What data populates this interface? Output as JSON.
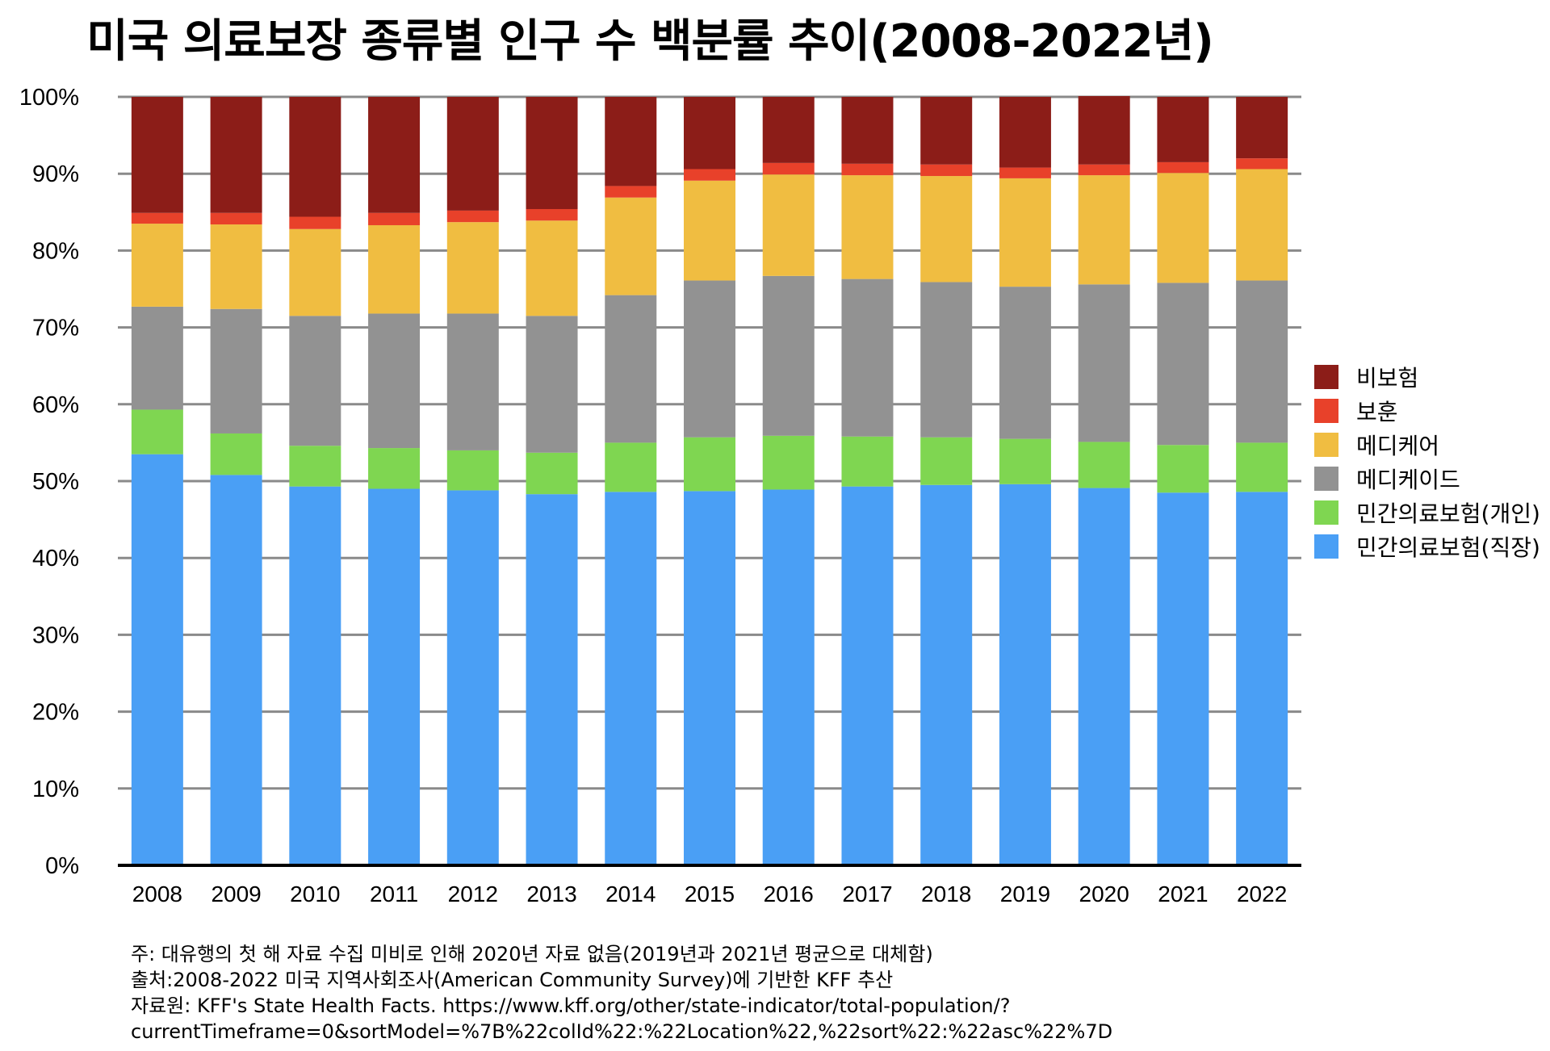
{
  "chart_data": {
    "type": "bar",
    "stacked": true,
    "title": "미국 의료보장 종류별 인구 수 백분률 추이(2008-2022년)",
    "xlabel": "",
    "ylabel": "",
    "ylim": [
      0,
      100
    ],
    "yticks": [
      "0%",
      "10%",
      "20%",
      "30%",
      "40%",
      "50%",
      "60%",
      "70%",
      "80%",
      "90%",
      "100%"
    ],
    "grid": true,
    "legend_position": "right",
    "categories": [
      "2008",
      "2009",
      "2010",
      "2011",
      "2012",
      "2013",
      "2014",
      "2015",
      "2016",
      "2017",
      "2018",
      "2019",
      "2020",
      "2021",
      "2022"
    ],
    "series": [
      {
        "name": "민간의료보험(직장)",
        "color": "#4a9ff5",
        "values": [
          53.5,
          50.8,
          49.3,
          49.0,
          48.8,
          48.3,
          48.6,
          48.7,
          48.9,
          49.3,
          49.5,
          49.6,
          49.1,
          48.5,
          48.6
        ]
      },
      {
        "name": "민간의료보험(개인)",
        "color": "#7fd651",
        "values": [
          5.8,
          5.4,
          5.3,
          5.3,
          5.2,
          5.4,
          6.4,
          7.0,
          7.0,
          6.5,
          6.2,
          5.9,
          6.0,
          6.2,
          6.4
        ]
      },
      {
        "name": "메디케이드",
        "color": "#929292",
        "values": [
          13.4,
          16.2,
          16.9,
          17.5,
          17.8,
          17.8,
          19.2,
          20.4,
          20.8,
          20.5,
          20.2,
          19.8,
          20.5,
          21.1,
          21.1
        ]
      },
      {
        "name": "메디케어",
        "color": "#f0bd41",
        "values": [
          10.8,
          11.0,
          11.3,
          11.5,
          11.9,
          12.4,
          12.7,
          13.0,
          13.2,
          13.5,
          13.8,
          14.1,
          14.2,
          14.3,
          14.5
        ]
      },
      {
        "name": "보훈",
        "color": "#e8412a",
        "values": [
          1.4,
          1.5,
          1.6,
          1.6,
          1.5,
          1.5,
          1.5,
          1.5,
          1.5,
          1.5,
          1.5,
          1.4,
          1.4,
          1.4,
          1.4
        ]
      },
      {
        "name": "비보험",
        "color": "#8c1d18",
        "values": [
          15.1,
          15.1,
          15.6,
          15.1,
          14.8,
          14.6,
          11.6,
          9.4,
          8.6,
          8.7,
          8.8,
          9.2,
          8.9,
          8.5,
          8.0
        ]
      }
    ]
  },
  "legend": {
    "items": [
      {
        "label": "비보험",
        "color": "#8c1d18"
      },
      {
        "label": "보훈",
        "color": "#e8412a"
      },
      {
        "label": "메디케어",
        "color": "#f0bd41"
      },
      {
        "label": "메디케이드",
        "color": "#929292"
      },
      {
        "label": "민간의료보험(개인)",
        "color": "#7fd651"
      },
      {
        "label": "민간의료보험(직장)",
        "color": "#4a9ff5"
      }
    ]
  },
  "notes": {
    "line1": "주: 대유행의 첫 해 자료 수집 미비로 인해 2020년 자료 없음(2019년과 2021년 평균으로 대체함)",
    "line2": "출처:2008-2022 미국 지역사회조사(American Community Survey)에 기반한 KFF 추산",
    "line3": "자료원: KFF's State Health Facts. https://www.kff.org/other/state-indicator/total-population/?",
    "line4": "currentTimeframe=0&sortModel=%7B%22colId%22:%22Location%22,%22sort%22:%22asc%22%7D"
  }
}
